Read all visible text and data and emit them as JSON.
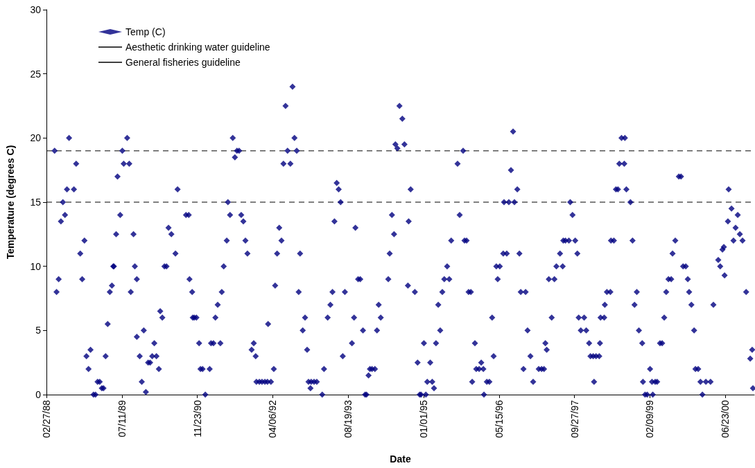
{
  "chart_data": {
    "type": "scatter",
    "xlabel": "Date",
    "ylabel": "Temperature (degrees C)",
    "legend": "top left",
    "grid": false,
    "xlim": [
      "1988-02-27",
      "2001-01-01"
    ],
    "xticks": [
      {
        "value": "1988-02-27",
        "label": "02/27/88"
      },
      {
        "value": "1989-07-11",
        "label": "07/11/89"
      },
      {
        "value": "1990-11-23",
        "label": "11/23/90"
      },
      {
        "value": "1992-04-06",
        "label": "04/06/92"
      },
      {
        "value": "1993-08-19",
        "label": "08/19/93"
      },
      {
        "value": "1995-01-01",
        "label": "01/01/95"
      },
      {
        "value": "1996-05-15",
        "label": "05/15/96"
      },
      {
        "value": "1997-09-27",
        "label": "09/27/97"
      },
      {
        "value": "1999-02-09",
        "label": "02/09/99"
      },
      {
        "value": "2000-06-23",
        "label": "06/23/00"
      }
    ],
    "ylim": [
      0,
      30
    ],
    "yticks": [
      0,
      5,
      10,
      15,
      20,
      25,
      30
    ],
    "series": [
      {
        "name": "Temp (C)",
        "marker": "diamond",
        "color": "#000080",
        "x": [
          "1988-04-21",
          "1988-05-04",
          "1988-05-18",
          "1988-06-02",
          "1988-06-15",
          "1988-06-29",
          "1988-07-12",
          "1988-07-26",
          "1988-08-27",
          "1988-09-11",
          "1988-10-08",
          "1988-10-21",
          "1988-11-05",
          "1988-11-18",
          "1988-12-02",
          "1988-12-15",
          "1989-01-04",
          "1989-01-17",
          "1989-01-31",
          "1989-02-14",
          "1989-02-28",
          "1989-03-11",
          "1989-03-25",
          "1989-04-08",
          "1989-04-22",
          "1989-05-06",
          "1989-05-15",
          "1989-05-19",
          "1989-06-03",
          "1989-06-12",
          "1989-06-30",
          "1989-07-14",
          "1989-07-23",
          "1989-08-15",
          "1989-08-29",
          "1989-09-08",
          "1989-09-26",
          "1989-10-05",
          "1989-10-18",
          "1989-10-18",
          "1989-11-06",
          "1989-11-20",
          "1989-12-03",
          "1989-12-17",
          "1990-01-01",
          "1990-01-14",
          "1990-01-28",
          "1990-02-11",
          "1990-02-25",
          "1990-03-13",
          "1990-03-22",
          "1990-04-05",
          "1990-04-19",
          "1990-05-03",
          "1990-05-16",
          "1990-06-04",
          "1990-07-01",
          "1990-07-15",
          "1990-09-09",
          "1990-09-27",
          "1990-10-02",
          "1990-10-20",
          "1990-10-24",
          "1990-11-03",
          "1990-11-17",
          "1990-12-05",
          "1990-12-14",
          "1990-12-28",
          "1991-01-15",
          "1991-02-13",
          "1991-02-22",
          "1991-03-10",
          "1991-03-23",
          "1991-04-07",
          "1991-04-25",
          "1991-05-04",
          "1991-05-17",
          "1991-06-06",
          "1991-06-14",
          "1991-06-28",
          "1991-07-16",
          "1991-07-30",
          "1991-08-13",
          "1991-08-27",
          "1991-09-10",
          "1991-09-24",
          "1991-10-08",
          "1991-10-21",
          "1991-11-18",
          "1991-12-02",
          "1991-12-15",
          "1991-12-20",
          "1992-01-08",
          "1992-01-26",
          "1992-02-14",
          "1992-03-02",
          "1992-03-06",
          "1992-03-25",
          "1992-04-13",
          "1992-04-22",
          "1992-05-05",
          "1992-05-19",
          "1992-06-03",
          "1992-06-16",
          "1992-06-30",
          "1992-07-13",
          "1992-08-01",
          "1992-08-15",
          "1992-08-28",
          "1992-09-12",
          "1992-09-25",
          "1992-10-04",
          "1992-10-22",
          "1992-11-06",
          "1992-11-20",
          "1992-11-29",
          "1992-12-12",
          "1992-12-17",
          "1993-01-05",
          "1993-01-23",
          "1993-02-28",
          "1993-03-12",
          "1993-04-05",
          "1993-04-23",
          "1993-05-07",
          "1993-05-20",
          "1993-06-04",
          "1993-06-17",
          "1993-06-30",
          "1993-07-14",
          "1993-07-28",
          "1993-09-13",
          "1993-09-27",
          "1993-10-06",
          "1993-10-24",
          "1993-11-07",
          "1993-11-25",
          "1993-12-09",
          "1993-12-18",
          "1994-01-01",
          "1994-01-10",
          "1994-01-24",
          "1994-02-12",
          "1994-02-26",
          "1994-03-09",
          "1994-03-23",
          "1994-05-12",
          "1994-05-21",
          "1994-06-05",
          "1994-06-19",
          "1994-06-28",
          "1994-07-11",
          "1994-07-25",
          "1994-08-13",
          "1994-08-27",
          "1994-09-19",
          "1994-09-24",
          "1994-10-07",
          "1994-11-04",
          "1994-11-22",
          "1994-12-06",
          "1994-12-15",
          "1995-01-03",
          "1995-01-16",
          "1995-01-25",
          "1995-02-14",
          "1995-02-27",
          "1995-03-11",
          "1995-03-24",
          "1995-04-08",
          "1995-04-21",
          "1995-05-05",
          "1995-05-18",
          "1995-06-06",
          "1995-06-20",
          "1995-07-03",
          "1995-08-14",
          "1995-08-28",
          "1995-09-20",
          "1995-09-29",
          "1995-10-13",
          "1995-10-26",
          "1995-11-10",
          "1995-11-19",
          "1995-12-07",
          "1995-12-16",
          "1996-01-04",
          "1996-01-18",
          "1996-02-01",
          "1996-02-05",
          "1996-02-24",
          "1996-03-12",
          "1996-03-30",
          "1996-04-09",
          "1996-04-27",
          "1996-05-06",
          "1996-05-20",
          "1996-06-12",
          "1996-06-17",
          "1996-07-05",
          "1996-07-19",
          "1996-08-02",
          "1996-08-16",
          "1996-08-25",
          "1996-09-13",
          "1996-09-27",
          "1996-10-06",
          "1996-10-24",
          "1996-11-07",
          "1996-11-20",
          "1996-12-09",
          "1996-12-27",
          "1997-02-02",
          "1997-02-21",
          "1997-03-09",
          "1997-03-18",
          "1997-03-27",
          "1997-04-10",
          "1997-04-29",
          "1997-05-17",
          "1997-05-30",
          "1997-06-23",
          "1997-07-11",
          "1997-07-15",
          "1997-07-29",
          "1997-08-21",
          "1997-08-30",
          "1997-09-14",
          "1997-10-02",
          "1997-10-16",
          "1997-10-25",
          "1997-11-08",
          "1997-11-30",
          "1997-12-14",
          "1998-01-02",
          "1998-01-11",
          "1998-01-29",
          "1998-02-04",
          "1998-02-17",
          "1998-03-10",
          "1998-03-15",
          "1998-03-19",
          "1998-04-12",
          "1998-04-16",
          "1998-04-30",
          "1998-05-23",
          "1998-05-27",
          "1998-06-15",
          "1998-06-29",
          "1998-07-12",
          "1998-07-21",
          "1998-08-05",
          "1998-08-23",
          "1998-08-27",
          "1998-09-06",
          "1998-10-03",
          "1998-10-17",
          "1998-10-30",
          "1998-11-14",
          "1998-11-28",
          "1998-12-20",
          "1998-12-25",
          "1999-01-08",
          "1999-01-22",
          "1999-02-10",
          "1999-02-23",
          "1999-02-28",
          "1999-03-16",
          "1999-03-29",
          "1999-04-17",
          "1999-05-01",
          "1999-05-15",
          "1999-05-28",
          "1999-06-12",
          "1999-06-30",
          "1999-07-09",
          "1999-07-27",
          "1999-08-20",
          "1999-09-03",
          "1999-09-17",
          "1999-10-05",
          "1999-10-18",
          "1999-10-27",
          "1999-11-11",
          "1999-11-29",
          "1999-12-08",
          "1999-12-26",
          "2000-01-10",
          "2000-01-23",
          "2000-02-15",
          "2000-03-17",
          "2000-04-05",
          "2000-05-07",
          "2000-05-20",
          "2000-06-04",
          "2000-06-13",
          "2000-06-18",
          "2000-07-10",
          "2000-07-15",
          "2000-08-03",
          "2000-08-16",
          "2000-08-30",
          "2000-09-13",
          "2000-09-27",
          "2000-10-15",
          "2000-11-08",
          "2000-12-05",
          "2000-12-18",
          "2000-12-23"
        ],
        "values": [
          19,
          8,
          9,
          13.5,
          15,
          14,
          16,
          20,
          16,
          18,
          11,
          9,
          12,
          3,
          2,
          3.5,
          0,
          0,
          1,
          1,
          0.5,
          0.5,
          3,
          5.5,
          8,
          8.5,
          10,
          10,
          12.5,
          17,
          14,
          19,
          18,
          20,
          18,
          8,
          12.5,
          10,
          9,
          4.5,
          3,
          1,
          5,
          0.2,
          2.5,
          2.5,
          3,
          4,
          3,
          2,
          6.5,
          6,
          10,
          10,
          13,
          12.5,
          11,
          16,
          14,
          14,
          9,
          8,
          6,
          6,
          6,
          4,
          2,
          2,
          0,
          2,
          4,
          4,
          6,
          7,
          4,
          8,
          10,
          12,
          15,
          14,
          20,
          18.5,
          19,
          19,
          14,
          13.5,
          12,
          11,
          3.5,
          4,
          3,
          1,
          1,
          1,
          1,
          1,
          5.5,
          1,
          2,
          8.5,
          11,
          13,
          12,
          18,
          22.5,
          19,
          18,
          24,
          20,
          19,
          8,
          11,
          5,
          6,
          3.5,
          1,
          0.5,
          1,
          1,
          1,
          0,
          2,
          6,
          7,
          8,
          13.5,
          16.5,
          16,
          15,
          3,
          8,
          4,
          6,
          13,
          9,
          9,
          5,
          0,
          0,
          1.5,
          2,
          2,
          2,
          5,
          7,
          6,
          9,
          11,
          14,
          12.5,
          19.5,
          19.2,
          22.5,
          21.5,
          19.5,
          8.5,
          13.5,
          16,
          8,
          2.5,
          0,
          0,
          4,
          0,
          1,
          2.5,
          1,
          0.5,
          4,
          7,
          5,
          8,
          9,
          10,
          9,
          12,
          18,
          14,
          19,
          12,
          12,
          8,
          8,
          1,
          4,
          2,
          2,
          2.5,
          2,
          0,
          1,
          1,
          6,
          3,
          10,
          9,
          10,
          11,
          15,
          11,
          15,
          17.5,
          20.5,
          15,
          16,
          11,
          8,
          2,
          8,
          5,
          3,
          1,
          2,
          2,
          2,
          4,
          3.5,
          9,
          6,
          9,
          10,
          11,
          10,
          12,
          12,
          12,
          15,
          14,
          12,
          11,
          6,
          5,
          6,
          5,
          4,
          3,
          3,
          1,
          3,
          3,
          4,
          6,
          6,
          7,
          8,
          8,
          12,
          12,
          16,
          16,
          18,
          20,
          18,
          20,
          16,
          15,
          12,
          7,
          8,
          5,
          4,
          1,
          0,
          0,
          2,
          1,
          0,
          1,
          1,
          4,
          4,
          6,
          8,
          9,
          9,
          11,
          12,
          17,
          17,
          10,
          10,
          9,
          8,
          7,
          5,
          2,
          2,
          1,
          0,
          1,
          1,
          7,
          10.5,
          10,
          11.3,
          11.5,
          9.3,
          13.5,
          16,
          14.5,
          12,
          13,
          14,
          12.5,
          12,
          8,
          2.8,
          3.5,
          0.5
        ]
      },
      {
        "name": "Aesthetic drinking water guideline",
        "type": "line",
        "color": "#000000",
        "line_style": "dashed",
        "marker": "none",
        "x": [
          "1988-02-27",
          "2001-01-01"
        ],
        "values": [
          15,
          15
        ]
      },
      {
        "name": "General fisheries guideline",
        "type": "line",
        "color": "#000000",
        "line_style": "dashed",
        "marker": "none",
        "x": [
          "1988-02-27",
          "2001-01-01"
        ],
        "values": [
          19,
          19
        ]
      }
    ]
  }
}
